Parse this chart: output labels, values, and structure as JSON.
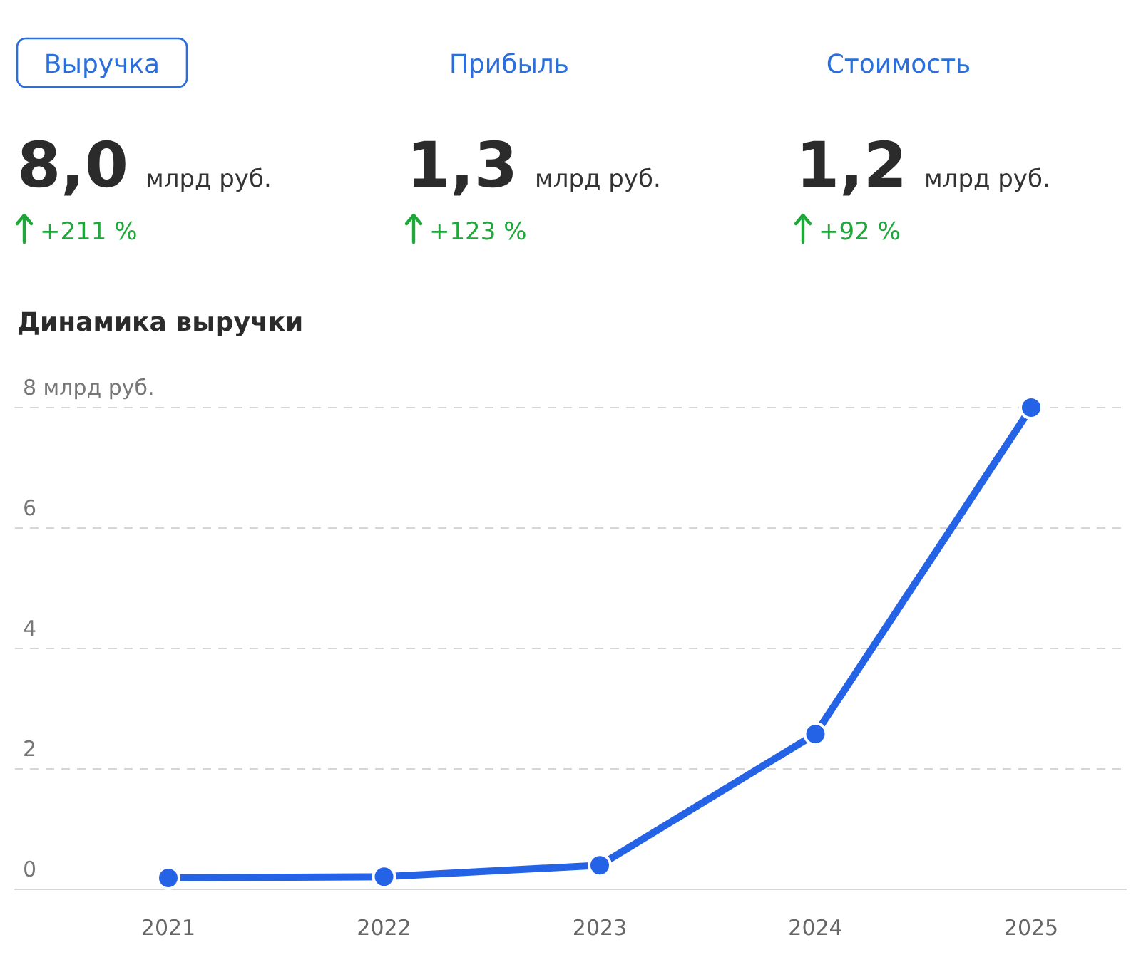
{
  "chart_data": [
    {
      "type": "other",
      "annotations": [
        "Выручка",
        "8,0",
        "млрд руб.",
        "+211 %",
        "Прибыль",
        "1,3",
        "млрд руб.",
        "+123 %",
        "Стоимость",
        "1,2",
        "млрд руб.",
        "+92 %"
      ]
    },
    {
      "type": "line",
      "title": "Динамика выручки",
      "categories": [
        "2021",
        "2022",
        "2023",
        "2024",
        "2025"
      ],
      "series": [
        {
          "color": "#2563e6",
          "values": [
            0.19,
            0.21,
            0.4,
            2.58,
            8.0
          ]
        }
      ],
      "ylim": [
        0,
        8
      ],
      "yticks": [
        0,
        2,
        4,
        6,
        {
          "value": 8,
          "label": "8 млрд руб."
        }
      ],
      "grid": "y",
      "marker": "circle",
      "line_style": "solid"
    }
  ]
}
